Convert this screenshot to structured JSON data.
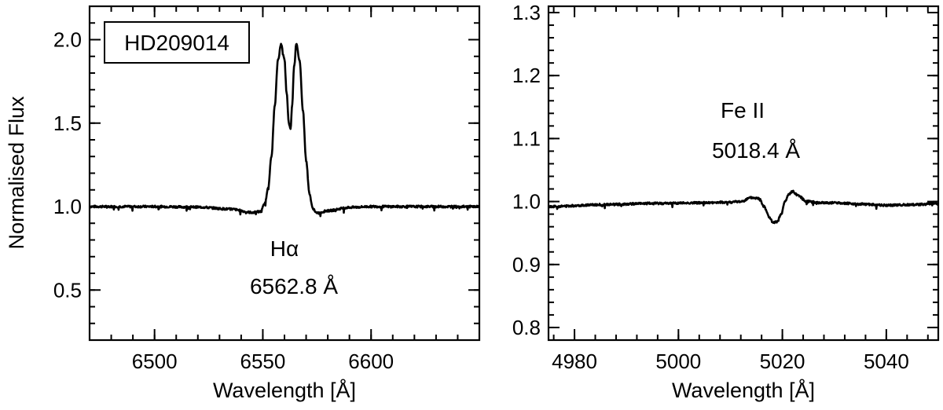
{
  "chart_data": [
    {
      "type": "line",
      "panel": "left",
      "label_box": "HD209014",
      "xlabel": "Wavelength [Å]",
      "ylabel": "Normalised Flux",
      "xlim": [
        6470,
        6650
      ],
      "ylim": [
        0.2,
        2.2
      ],
      "xticks": [
        6500,
        6550,
        6600
      ],
      "xtick_labels": [
        "6500",
        "6550",
        "6600"
      ],
      "yticks": [
        0.5,
        1.0,
        1.5,
        2.0
      ],
      "ytick_labels": [
        "0.5",
        "1.0",
        "1.5",
        "2.0"
      ],
      "annotations": [
        {
          "text": "Hα",
          "x": 6560,
          "y": 0.7
        },
        {
          "text": "6562.8 Å",
          "x": 6560,
          "y": 0.53
        }
      ],
      "series": [
        {
          "x": [
            6470,
            6500,
            6520,
            6535,
            6545,
            6549,
            6551,
            6552.5,
            6554,
            6555.5,
            6557,
            6558.5,
            6560,
            6561,
            6562,
            6562.8,
            6563.5,
            6564.5,
            6565.5,
            6567,
            6568.5,
            6570,
            6571.5,
            6573,
            6575,
            6580,
            6590,
            6600,
            6620,
            6650
          ],
          "y": [
            1.0,
            1.0,
            0.997,
            0.985,
            0.965,
            0.97,
            1.02,
            1.12,
            1.3,
            1.6,
            1.88,
            1.975,
            1.88,
            1.68,
            1.5,
            1.46,
            1.6,
            1.85,
            1.98,
            1.87,
            1.58,
            1.28,
            1.08,
            0.99,
            0.96,
            0.975,
            0.995,
            1.0,
            1.0,
            1.0
          ]
        }
      ]
    },
    {
      "type": "line",
      "panel": "right",
      "xlabel": "Wavelength [Å]",
      "xlim": [
        4975,
        5050
      ],
      "ylim": [
        0.78,
        1.31
      ],
      "xticks": [
        4980,
        5000,
        5020,
        5040
      ],
      "xtick_labels": [
        "4980",
        "5000",
        "5020",
        "5040"
      ],
      "yticks": [
        0.8,
        0.9,
        1.0,
        1.1,
        1.2,
        1.3
      ],
      "ytick_labels": [
        "0.8",
        "0.9",
        "1.0",
        "1.1",
        "1.2",
        "1.3"
      ],
      "annotations": [
        {
          "text": "Fe II",
          "x": 5018,
          "y": 1.1
        },
        {
          "text": "5018.4 Å",
          "x": 5018,
          "y": 1.075
        }
      ],
      "series": [
        {
          "x": [
            4975,
            4985,
            4995,
            5005,
            5010,
            5012,
            5014,
            5015.5,
            5016.5,
            5017.5,
            5018.2,
            5019,
            5019.8,
            5020.5,
            5021.3,
            5022,
            5023,
            5024.5,
            5027,
            5030,
            5035,
            5040,
            5045,
            5050
          ],
          "y": [
            0.992,
            0.995,
            0.997,
            0.998,
            0.999,
            1.0,
            1.006,
            1.005,
            0.992,
            0.975,
            0.966,
            0.968,
            0.98,
            1.0,
            1.012,
            1.016,
            1.01,
            1.001,
            0.998,
            0.998,
            0.996,
            0.994,
            0.995,
            0.997
          ]
        }
      ]
    }
  ]
}
